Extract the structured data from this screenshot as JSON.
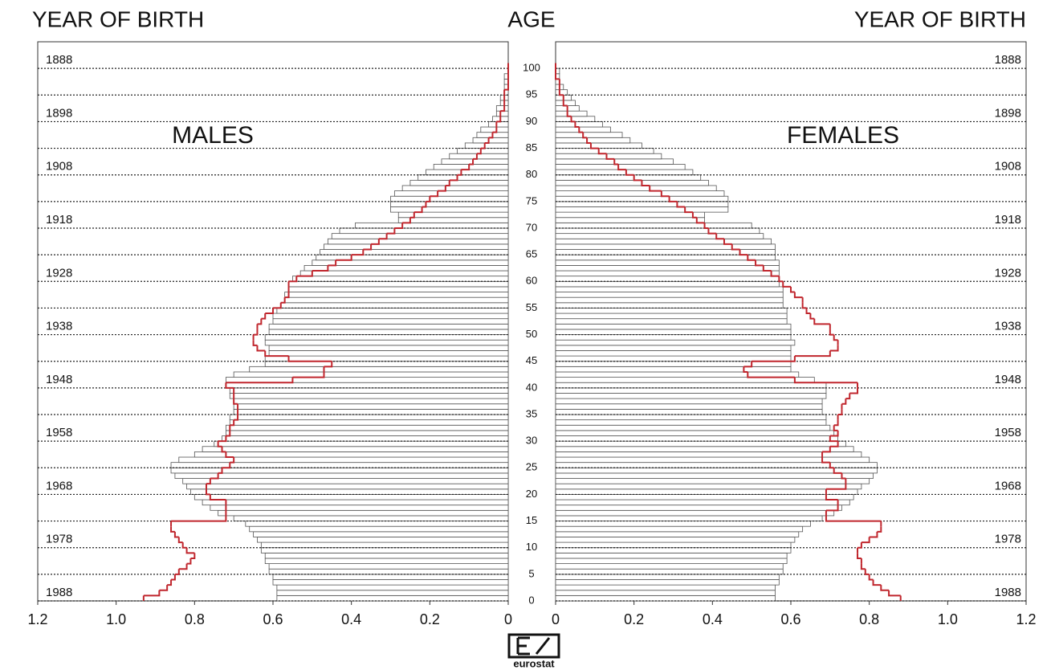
{
  "age_label": "AGE",
  "logo_text": "eurostat",
  "chart_data": [
    {
      "type": "pyramid",
      "title": "MALES",
      "year_label": "YEAR OF BIRTH",
      "side": "left",
      "x": [
        0,
        1,
        2,
        3,
        4,
        5,
        6,
        7,
        8,
        9,
        10,
        11,
        12,
        13,
        14,
        15,
        16,
        17,
        18,
        19,
        20,
        21,
        22,
        23,
        24,
        25,
        26,
        27,
        28,
        29,
        30,
        31,
        32,
        33,
        34,
        35,
        36,
        37,
        38,
        39,
        40,
        41,
        42,
        43,
        44,
        45,
        46,
        47,
        48,
        49,
        50,
        51,
        52,
        53,
        54,
        55,
        56,
        57,
        58,
        59,
        60,
        61,
        62,
        63,
        64,
        65,
        66,
        67,
        68,
        69,
        70,
        71,
        72,
        73,
        74,
        75,
        76,
        77,
        78,
        79,
        80,
        81,
        82,
        83,
        84,
        85,
        86,
        87,
        88,
        89,
        90,
        91,
        92,
        93,
        94,
        95,
        96,
        97,
        98,
        99,
        100
      ],
      "series": [
        {
          "color": "#555555",
          "style": "bars",
          "values": [
            0.59,
            0.59,
            0.59,
            0.6,
            0.6,
            0.61,
            0.61,
            0.62,
            0.62,
            0.63,
            0.63,
            0.64,
            0.65,
            0.66,
            0.67,
            0.7,
            0.74,
            0.76,
            0.78,
            0.8,
            0.81,
            0.82,
            0.83,
            0.85,
            0.86,
            0.86,
            0.84,
            0.8,
            0.78,
            0.75,
            0.73,
            0.72,
            0.72,
            0.71,
            0.71,
            0.7,
            0.7,
            0.7,
            0.71,
            0.71,
            0.72,
            0.72,
            0.7,
            0.66,
            0.62,
            0.62,
            0.61,
            0.61,
            0.62,
            0.62,
            0.61,
            0.61,
            0.6,
            0.6,
            0.59,
            0.58,
            0.57,
            0.57,
            0.56,
            0.56,
            0.55,
            0.53,
            0.52,
            0.5,
            0.49,
            0.48,
            0.47,
            0.46,
            0.45,
            0.43,
            0.39,
            0.28,
            0.28,
            0.3,
            0.3,
            0.3,
            0.29,
            0.27,
            0.25,
            0.23,
            0.21,
            0.19,
            0.17,
            0.15,
            0.13,
            0.11,
            0.09,
            0.08,
            0.07,
            0.05,
            0.04,
            0.03,
            0.03,
            0.02,
            0.02,
            0.01,
            0.01,
            0.01,
            0.01,
            0,
            0
          ]
        },
        {
          "color": "#c0262d",
          "style": "step",
          "values": [
            0.93,
            0.89,
            0.87,
            0.86,
            0.85,
            0.84,
            0.82,
            0.81,
            0.8,
            0.82,
            0.83,
            0.84,
            0.85,
            0.86,
            0.86,
            0.72,
            0.72,
            0.72,
            0.72,
            0.76,
            0.77,
            0.77,
            0.76,
            0.74,
            0.73,
            0.71,
            0.7,
            0.72,
            0.73,
            0.74,
            0.72,
            0.71,
            0.71,
            0.7,
            0.69,
            0.69,
            0.69,
            0.7,
            0.7,
            0.7,
            0.72,
            0.55,
            0.47,
            0.47,
            0.45,
            0.56,
            0.62,
            0.64,
            0.65,
            0.65,
            0.64,
            0.64,
            0.63,
            0.62,
            0.6,
            0.58,
            0.57,
            0.56,
            0.56,
            0.56,
            0.54,
            0.5,
            0.46,
            0.44,
            0.4,
            0.37,
            0.35,
            0.33,
            0.31,
            0.29,
            0.27,
            0.25,
            0.24,
            0.22,
            0.21,
            0.2,
            0.18,
            0.16,
            0.15,
            0.13,
            0.12,
            0.1,
            0.09,
            0.08,
            0.07,
            0.06,
            0.05,
            0.04,
            0.03,
            0.03,
            0.02,
            0.02,
            0.01,
            0.01,
            0.01,
            0.01,
            0,
            0,
            0,
            0,
            0
          ]
        }
      ],
      "xlim": [
        1.2,
        0
      ],
      "xticks": [
        1.2,
        {
          "value": 1,
          "label": "1.0"
        },
        0.8,
        0.6,
        0.4,
        0.2,
        0
      ],
      "ylim": [
        0,
        105
      ],
      "yticks": [
        0,
        5,
        10,
        15,
        20,
        25,
        30,
        35,
        40,
        45,
        50,
        55,
        60,
        65,
        70,
        75,
        80,
        85,
        90,
        95,
        100
      ],
      "grid": true,
      "year_ticks": [
        {
          "value": 100,
          "label": "1888"
        },
        {
          "value": 90,
          "label": "1898"
        },
        {
          "value": 80,
          "label": "1908"
        },
        {
          "value": 70,
          "label": "1918"
        },
        {
          "value": 60,
          "label": "1928"
        },
        {
          "value": 50,
          "label": "1938"
        },
        {
          "value": 40,
          "label": "1948"
        },
        {
          "value": 30,
          "label": "1958"
        },
        {
          "value": 20,
          "label": "1968"
        },
        {
          "value": 10,
          "label": "1978"
        },
        {
          "value": 0,
          "label": "1988"
        }
      ]
    },
    {
      "type": "pyramid",
      "title": "FEMALES",
      "year_label": "YEAR OF BIRTH",
      "side": "right",
      "x": [
        0,
        1,
        2,
        3,
        4,
        5,
        6,
        7,
        8,
        9,
        10,
        11,
        12,
        13,
        14,
        15,
        16,
        17,
        18,
        19,
        20,
        21,
        22,
        23,
        24,
        25,
        26,
        27,
        28,
        29,
        30,
        31,
        32,
        33,
        34,
        35,
        36,
        37,
        38,
        39,
        40,
        41,
        42,
        43,
        44,
        45,
        46,
        47,
        48,
        49,
        50,
        51,
        52,
        53,
        54,
        55,
        56,
        57,
        58,
        59,
        60,
        61,
        62,
        63,
        64,
        65,
        66,
        67,
        68,
        69,
        70,
        71,
        72,
        73,
        74,
        75,
        76,
        77,
        78,
        79,
        80,
        81,
        82,
        83,
        84,
        85,
        86,
        87,
        88,
        89,
        90,
        91,
        92,
        93,
        94,
        95,
        96,
        97,
        98,
        99,
        100
      ],
      "series": [
        {
          "color": "#555555",
          "style": "bars",
          "values": [
            0.56,
            0.56,
            0.56,
            0.57,
            0.57,
            0.58,
            0.58,
            0.59,
            0.59,
            0.6,
            0.6,
            0.61,
            0.62,
            0.63,
            0.65,
            0.68,
            0.71,
            0.73,
            0.75,
            0.76,
            0.77,
            0.78,
            0.8,
            0.81,
            0.82,
            0.82,
            0.8,
            0.78,
            0.76,
            0.74,
            0.72,
            0.71,
            0.7,
            0.69,
            0.69,
            0.68,
            0.68,
            0.68,
            0.69,
            0.69,
            0.69,
            0.66,
            0.62,
            0.6,
            0.6,
            0.6,
            0.6,
            0.6,
            0.61,
            0.6,
            0.6,
            0.6,
            0.59,
            0.59,
            0.59,
            0.58,
            0.58,
            0.58,
            0.58,
            0.57,
            0.57,
            0.57,
            0.57,
            0.57,
            0.56,
            0.56,
            0.56,
            0.55,
            0.53,
            0.52,
            0.5,
            0.38,
            0.38,
            0.44,
            0.44,
            0.44,
            0.43,
            0.41,
            0.39,
            0.37,
            0.35,
            0.33,
            0.3,
            0.27,
            0.25,
            0.22,
            0.19,
            0.17,
            0.14,
            0.12,
            0.1,
            0.08,
            0.06,
            0.05,
            0.04,
            0.03,
            0.02,
            0.01,
            0.01,
            0.01,
            0
          ]
        },
        {
          "color": "#c0262d",
          "style": "step",
          "values": [
            0.88,
            0.85,
            0.83,
            0.81,
            0.8,
            0.79,
            0.78,
            0.78,
            0.77,
            0.77,
            0.78,
            0.8,
            0.82,
            0.83,
            0.83,
            0.69,
            0.69,
            0.72,
            0.72,
            0.69,
            0.69,
            0.74,
            0.74,
            0.73,
            0.71,
            0.7,
            0.68,
            0.68,
            0.7,
            0.72,
            0.7,
            0.72,
            0.71,
            0.72,
            0.72,
            0.73,
            0.73,
            0.74,
            0.75,
            0.77,
            0.77,
            0.61,
            0.49,
            0.48,
            0.5,
            0.61,
            0.7,
            0.72,
            0.72,
            0.71,
            0.7,
            0.7,
            0.66,
            0.65,
            0.64,
            0.63,
            0.63,
            0.61,
            0.6,
            0.58,
            0.57,
            0.55,
            0.53,
            0.51,
            0.49,
            0.47,
            0.45,
            0.43,
            0.41,
            0.39,
            0.38,
            0.36,
            0.35,
            0.33,
            0.31,
            0.29,
            0.27,
            0.24,
            0.22,
            0.2,
            0.18,
            0.16,
            0.15,
            0.13,
            0.11,
            0.09,
            0.08,
            0.07,
            0.06,
            0.05,
            0.04,
            0.03,
            0.03,
            0.02,
            0.02,
            0.01,
            0.01,
            0.01,
            0,
            0,
            0
          ]
        }
      ],
      "xlim": [
        0,
        1.2
      ],
      "xticks": [
        0,
        0.2,
        0.4,
        0.6,
        0.8,
        {
          "value": 1,
          "label": "1.0"
        },
        1.2
      ],
      "ylim": [
        0,
        105
      ],
      "yticks": [
        0,
        5,
        10,
        15,
        20,
        25,
        30,
        35,
        40,
        45,
        50,
        55,
        60,
        65,
        70,
        75,
        80,
        85,
        90,
        95,
        100
      ],
      "grid": true,
      "year_ticks": [
        {
          "value": 100,
          "label": "1888"
        },
        {
          "value": 90,
          "label": "1898"
        },
        {
          "value": 80,
          "label": "1908"
        },
        {
          "value": 70,
          "label": "1918"
        },
        {
          "value": 60,
          "label": "1928"
        },
        {
          "value": 50,
          "label": "1938"
        },
        {
          "value": 40,
          "label": "1948"
        },
        {
          "value": 30,
          "label": "1958"
        },
        {
          "value": 20,
          "label": "1968"
        },
        {
          "value": 10,
          "label": "1978"
        },
        {
          "value": 0,
          "label": "1988"
        }
      ]
    }
  ]
}
